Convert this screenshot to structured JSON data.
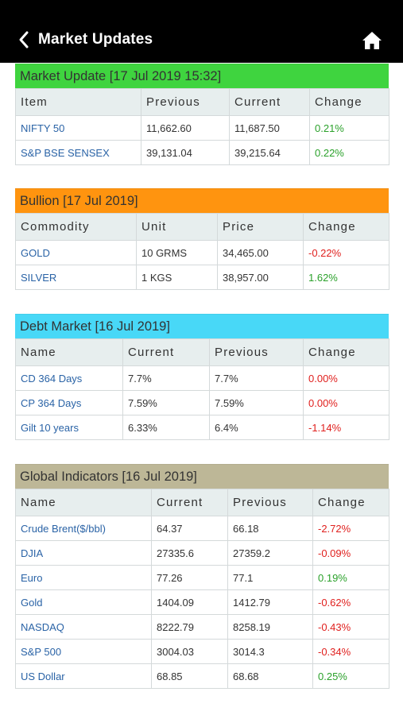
{
  "header": {
    "title": "Market Updates",
    "back_icon": "chevron-left-icon",
    "home_icon": "home-icon"
  },
  "colors": {
    "market": "#3fd43f",
    "bullion": "#ff940f",
    "debt": "#48d8f7",
    "global": "#bdb797",
    "positive": "#2ba12b",
    "negative": "#e0201e",
    "link": "#2a63a6"
  },
  "market": {
    "title": "Market Update [17 Jul 2019 15:32]",
    "headers": [
      "Item",
      "Previous",
      "Current",
      "Change"
    ],
    "rows": [
      [
        "NIFTY 50",
        "11,662.60",
        "11,687.50",
        "0.21%"
      ],
      [
        "S&P BSE SENSEX",
        "39,131.04",
        "39,215.64",
        "0.22%"
      ]
    ]
  },
  "bullion": {
    "title": "Bullion [17 Jul 2019]",
    "headers": [
      "Commodity",
      "Unit",
      "Price",
      "Change"
    ],
    "rows": [
      [
        "GOLD",
        "10 GRMS",
        "34,465.00",
        "-0.22%"
      ],
      [
        "SILVER",
        "1 KGS",
        "38,957.00",
        "1.62%"
      ]
    ]
  },
  "debt": {
    "title": "Debt Market [16 Jul 2019]",
    "headers": [
      "Name",
      "Current",
      "Previous",
      "Change"
    ],
    "rows": [
      [
        "CD 364 Days",
        "7.7%",
        "7.7%",
        "0.00%"
      ],
      [
        "CP 364 Days",
        "7.59%",
        "7.59%",
        "0.00%"
      ],
      [
        "Gilt 10 years",
        "6.33%",
        "6.4%",
        "-1.14%"
      ]
    ]
  },
  "global": {
    "title": "Global Indicators [16 Jul 2019]",
    "headers": [
      "Name",
      "Current",
      "Previous",
      "Change"
    ],
    "rows": [
      [
        "Crude Brent($/bbl)",
        "64.37",
        "66.18",
        "-2.72%"
      ],
      [
        "DJIA",
        "27335.6",
        "27359.2",
        "-0.09%"
      ],
      [
        "Euro",
        "77.26",
        "77.1",
        "0.19%"
      ],
      [
        "Gold",
        "1404.09",
        "1412.79",
        "-0.62%"
      ],
      [
        "NASDAQ",
        "8222.79",
        "8258.19",
        "-0.43%"
      ],
      [
        "S&P 500",
        "3004.03",
        "3014.3",
        "-0.34%"
      ],
      [
        "US Dollar",
        "68.85",
        "68.68",
        "0.25%"
      ]
    ]
  }
}
